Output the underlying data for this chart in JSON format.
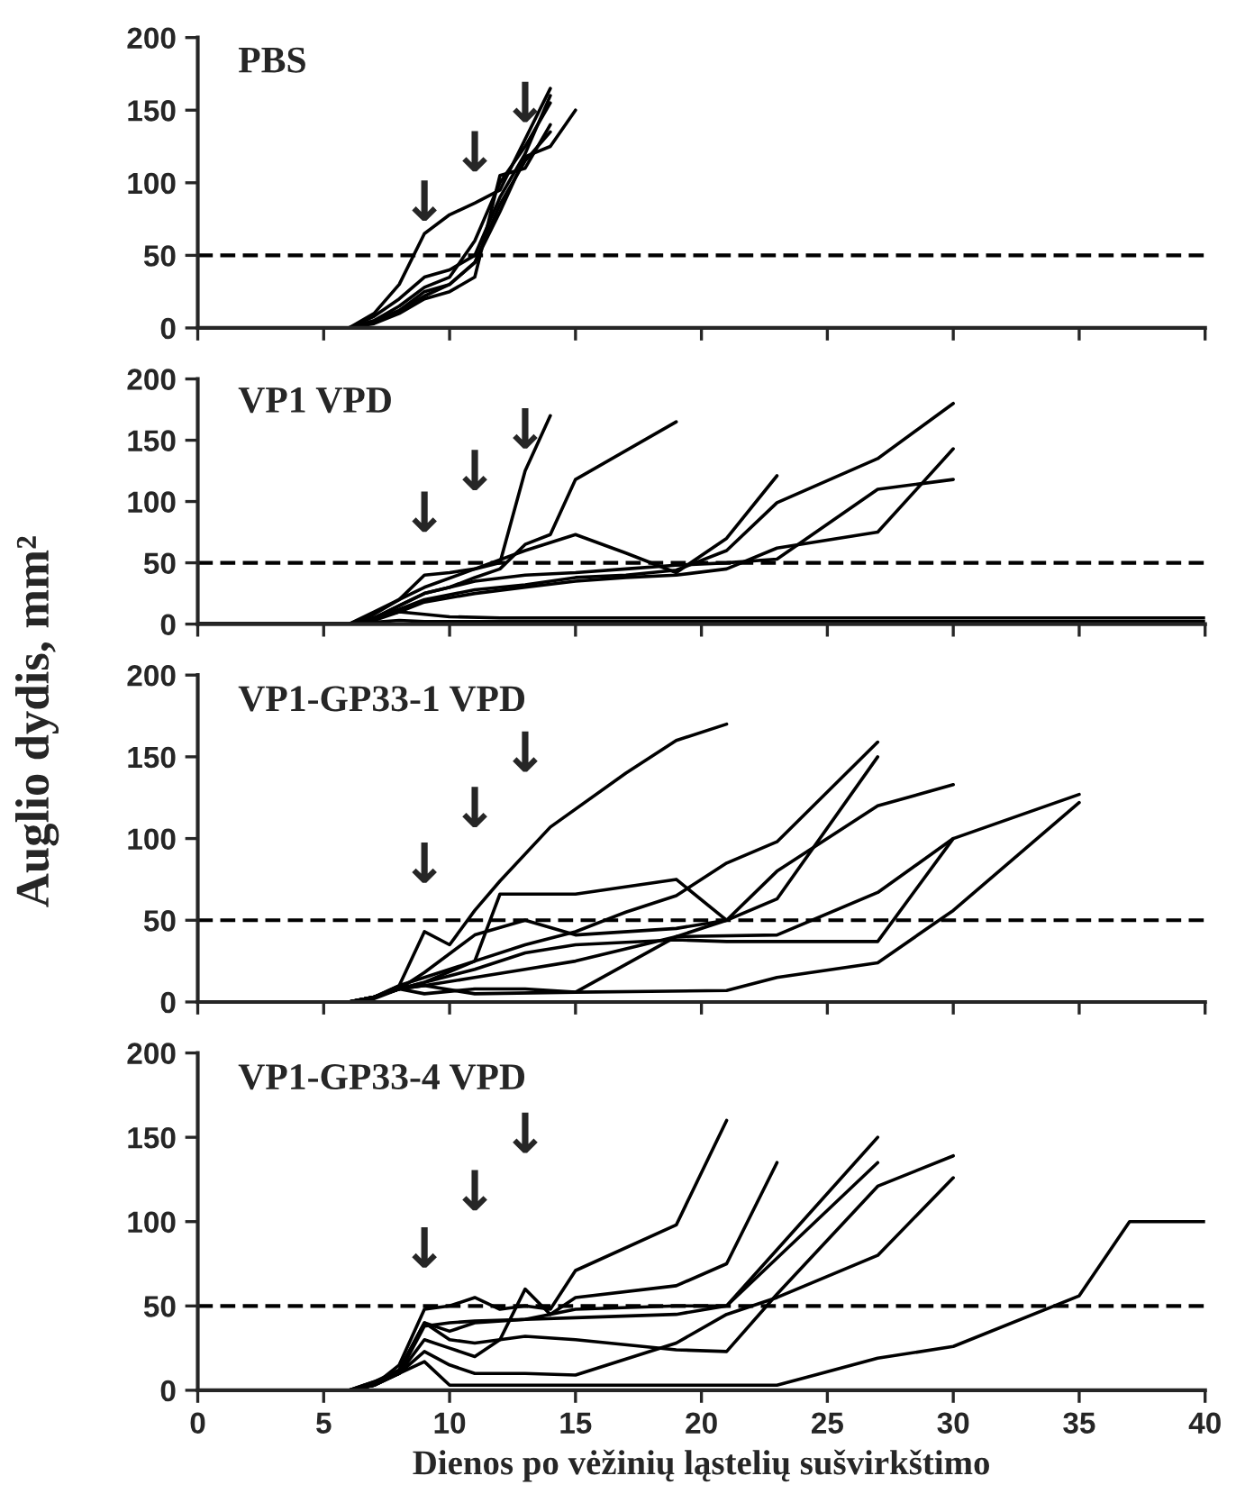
{
  "chart_data": [
    {
      "type": "line",
      "title": "PBS",
      "xlim": [
        0,
        40
      ],
      "xticks": [
        0,
        5,
        10,
        15,
        20,
        25,
        30,
        35,
        40
      ],
      "ylim": [
        0,
        200
      ],
      "yticks": [
        0,
        50,
        100,
        150,
        200
      ],
      "tick_labels": "y",
      "line_style": "solid",
      "ref_lines": [
        {
          "axis": "y",
          "value": 50,
          "color": "#000000",
          "line_style": "dashed"
        }
      ],
      "annotations": [
        "↓",
        "↓",
        "↓"
      ],
      "series": [
        {
          "color": "#000000",
          "x": [
            0,
            6,
            7,
            8,
            9,
            10,
            11,
            12,
            13,
            14
          ],
          "values": [
            0,
            0,
            10,
            30,
            65,
            78,
            86,
            95,
            130,
            165
          ]
        },
        {
          "color": "#000000",
          "x": [
            0,
            6,
            7,
            8,
            9,
            10,
            11,
            12,
            13,
            14
          ],
          "values": [
            0,
            0,
            8,
            20,
            35,
            40,
            50,
            90,
            120,
            160
          ]
        },
        {
          "color": "#000000",
          "x": [
            0,
            6,
            7,
            8,
            9,
            10,
            11,
            12,
            13,
            14,
            15
          ],
          "values": [
            0,
            0,
            5,
            12,
            25,
            30,
            45,
            80,
            118,
            125,
            150
          ]
        },
        {
          "color": "#000000",
          "x": [
            0,
            6,
            7,
            8,
            9,
            10,
            11,
            12,
            13,
            14
          ],
          "values": [
            0,
            0,
            3,
            10,
            20,
            25,
            35,
            105,
            110,
            140
          ]
        },
        {
          "color": "#000000",
          "x": [
            0,
            6,
            7,
            8,
            9,
            10,
            11,
            12,
            13,
            14
          ],
          "values": [
            0,
            0,
            5,
            15,
            28,
            35,
            60,
            100,
            125,
            155
          ]
        },
        {
          "color": "#000000",
          "x": [
            0,
            6,
            7,
            8,
            9,
            10,
            11,
            12,
            13,
            14
          ],
          "values": [
            0,
            0,
            4,
            12,
            22,
            30,
            45,
            85,
            115,
            135
          ]
        }
      ]
    },
    {
      "type": "line",
      "title": "VP1 VPD",
      "xlim": [
        0,
        40
      ],
      "xticks": [
        0,
        5,
        10,
        15,
        20,
        25,
        30,
        35,
        40
      ],
      "ylim": [
        0,
        200
      ],
      "yticks": [
        0,
        50,
        100,
        150,
        200
      ],
      "tick_labels": "y",
      "line_style": "solid",
      "ref_lines": [
        {
          "axis": "y",
          "value": 50,
          "color": "#000000",
          "line_style": "dashed"
        }
      ],
      "annotations": [
        "↓",
        "↓",
        "↓"
      ],
      "series": [
        {
          "color": "#000000",
          "x": [
            0,
            6,
            7,
            8,
            9,
            10,
            11,
            12,
            13,
            14
          ],
          "values": [
            0,
            0,
            10,
            20,
            40,
            42,
            45,
            50,
            125,
            170
          ]
        },
        {
          "color": "#000000",
          "x": [
            0,
            6,
            7,
            8,
            9,
            10,
            11,
            12,
            13,
            14,
            15,
            19
          ],
          "values": [
            0,
            0,
            5,
            15,
            25,
            30,
            38,
            45,
            65,
            73,
            118,
            165
          ]
        },
        {
          "color": "#000000",
          "x": [
            0,
            6,
            7,
            8,
            9,
            11,
            13,
            15,
            17,
            19,
            21,
            23
          ],
          "values": [
            0,
            0,
            8,
            20,
            30,
            45,
            60,
            73,
            58,
            42,
            70,
            121
          ]
        },
        {
          "color": "#000000",
          "x": [
            0,
            6,
            7,
            8,
            9,
            11,
            13,
            15,
            17,
            19,
            21,
            23,
            27,
            30
          ],
          "values": [
            0,
            0,
            5,
            12,
            20,
            28,
            32,
            38,
            40,
            44,
            60,
            99,
            135,
            180
          ]
        },
        {
          "color": "#000000",
          "x": [
            0,
            6,
            7,
            8,
            9,
            11,
            13,
            15,
            17,
            19,
            21,
            23,
            27,
            30
          ],
          "values": [
            0,
            0,
            3,
            10,
            18,
            25,
            30,
            35,
            38,
            40,
            45,
            62,
            75,
            143
          ]
        },
        {
          "color": "#000000",
          "x": [
            0,
            6,
            7,
            8,
            9,
            11,
            13,
            15,
            17,
            19,
            21,
            23,
            27,
            30
          ],
          "values": [
            0,
            0,
            5,
            15,
            25,
            35,
            40,
            42,
            45,
            48,
            50,
            53,
            110,
            118
          ]
        },
        {
          "color": "#000000",
          "x": [
            0,
            6,
            7,
            8,
            9,
            10,
            12,
            40
          ],
          "values": [
            0,
            0,
            5,
            10,
            8,
            6,
            5,
            5
          ]
        },
        {
          "color": "#000000",
          "x": [
            0,
            6,
            8,
            9,
            40
          ],
          "values": [
            0,
            0,
            3,
            2,
            2
          ]
        }
      ]
    },
    {
      "type": "line",
      "title": "VP1-GP33-1 VPD",
      "ylabel": "Auglio dydis, mm²",
      "xlim": [
        0,
        40
      ],
      "xticks": [
        0,
        5,
        10,
        15,
        20,
        25,
        30,
        35,
        40
      ],
      "ylim": [
        0,
        200
      ],
      "yticks": [
        0,
        50,
        100,
        150,
        200
      ],
      "tick_labels": "y",
      "line_style": "solid",
      "ref_lines": [
        {
          "axis": "y",
          "value": 50,
          "color": "#000000",
          "line_style": "dashed"
        }
      ],
      "annotations": [
        "↓",
        "↓",
        "↓"
      ],
      "series": [
        {
          "color": "#000000",
          "x": [
            0,
            6,
            7,
            8,
            9,
            10,
            11,
            12,
            14,
            17,
            19,
            21
          ],
          "values": [
            0,
            0,
            3,
            10,
            43,
            35,
            56,
            74,
            107,
            140,
            160,
            170
          ]
        },
        {
          "color": "#000000",
          "x": [
            0,
            6,
            7,
            8,
            9,
            11,
            12,
            15,
            19,
            21,
            23,
            27
          ],
          "values": [
            0,
            0,
            3,
            8,
            12,
            25,
            66,
            66,
            75,
            50,
            63,
            150
          ]
        },
        {
          "color": "#000000",
          "x": [
            0,
            6,
            7,
            8,
            9,
            11,
            13,
            15,
            17,
            19,
            21,
            23,
            27
          ],
          "values": [
            0,
            0,
            3,
            10,
            15,
            25,
            35,
            43,
            55,
            65,
            85,
            98,
            159
          ]
        },
        {
          "color": "#000000",
          "x": [
            0,
            6,
            7,
            8,
            9,
            11,
            13,
            15,
            19,
            21,
            23,
            27,
            30
          ],
          "values": [
            0,
            0,
            3,
            8,
            18,
            41,
            50,
            41,
            45,
            50,
            80,
            120,
            133
          ]
        },
        {
          "color": "#000000",
          "x": [
            0,
            6,
            7,
            8,
            9,
            11,
            13,
            15,
            19,
            23,
            27,
            30,
            35
          ],
          "values": [
            0,
            0,
            3,
            8,
            10,
            15,
            20,
            25,
            40,
            41,
            67,
            100,
            127
          ]
        },
        {
          "color": "#000000",
          "x": [
            0,
            6,
            7,
            8,
            9,
            11,
            15,
            21,
            23,
            27,
            30,
            35
          ],
          "values": [
            0,
            0,
            2,
            8,
            10,
            5,
            6,
            7,
            15,
            24,
            56,
            122
          ]
        },
        {
          "color": "#000000",
          "x": [
            0,
            6,
            7,
            8,
            9,
            11,
            13,
            15,
            19,
            21,
            23,
            27,
            30
          ],
          "values": [
            0,
            0,
            3,
            8,
            12,
            20,
            30,
            35,
            38,
            37,
            37,
            37,
            100
          ]
        },
        {
          "color": "#000000",
          "x": [
            0,
            6,
            7,
            8,
            9,
            11,
            13,
            15,
            19,
            21
          ],
          "values": [
            0,
            0,
            3,
            8,
            5,
            8,
            8,
            6,
            40,
            50
          ]
        }
      ]
    },
    {
      "type": "line",
      "title": "VP1-GP33-4 VPD",
      "xlabel": "Dienos po vėžinių ląstelių sušvirkštimo",
      "xlim": [
        0,
        40
      ],
      "xticks": [
        0,
        5,
        10,
        15,
        20,
        25,
        30,
        35,
        40
      ],
      "ylim": [
        0,
        200
      ],
      "yticks": [
        0,
        50,
        100,
        150,
        200
      ],
      "line_style": "solid",
      "ref_lines": [
        {
          "axis": "y",
          "value": 50,
          "color": "#000000",
          "line_style": "dashed"
        }
      ],
      "annotations": [
        "↓",
        "↓",
        "↓"
      ],
      "series": [
        {
          "color": "#000000",
          "x": [
            0,
            6,
            7,
            8,
            9,
            10,
            11,
            12,
            13,
            14,
            15,
            19,
            21
          ],
          "values": [
            0,
            0,
            3,
            15,
            48,
            50,
            55,
            48,
            50,
            48,
            71,
            98,
            160
          ]
        },
        {
          "color": "#000000",
          "x": [
            0,
            6,
            7,
            8,
            9,
            10,
            11,
            12,
            13,
            14,
            15,
            19,
            21,
            23
          ],
          "values": [
            0,
            0,
            3,
            10,
            30,
            25,
            20,
            30,
            60,
            45,
            55,
            62,
            75,
            135
          ]
        },
        {
          "color": "#000000",
          "x": [
            0,
            6,
            7,
            8,
            9,
            10,
            11,
            13,
            15,
            19,
            21,
            27
          ],
          "values": [
            0,
            0,
            5,
            12,
            40,
            35,
            40,
            42,
            48,
            50,
            50,
            150
          ]
        },
        {
          "color": "#000000",
          "x": [
            0,
            6,
            7,
            8,
            9,
            10,
            11,
            13,
            15,
            19,
            21,
            27
          ],
          "values": [
            0,
            0,
            3,
            10,
            38,
            40,
            41,
            42,
            43,
            45,
            50,
            135
          ]
        },
        {
          "color": "#000000",
          "x": [
            0,
            6,
            7,
            8,
            9,
            10,
            11,
            13,
            15,
            19,
            21,
            23,
            27,
            30
          ],
          "values": [
            0,
            0,
            3,
            12,
            40,
            30,
            28,
            32,
            30,
            24,
            23,
            57,
            121,
            139
          ]
        },
        {
          "color": "#000000",
          "x": [
            0,
            6,
            7,
            8,
            9,
            10,
            11,
            13,
            15,
            19,
            21,
            23,
            27,
            30
          ],
          "values": [
            0,
            0,
            3,
            10,
            23,
            15,
            10,
            10,
            9,
            28,
            45,
            55,
            80,
            126
          ]
        },
        {
          "color": "#000000",
          "x": [
            0,
            6,
            7,
            8,
            9,
            10,
            23,
            27,
            30,
            35,
            37,
            40
          ],
          "values": [
            0,
            0,
            5,
            10,
            17,
            3,
            3,
            19,
            26,
            56,
            100,
            100
          ]
        }
      ]
    }
  ]
}
